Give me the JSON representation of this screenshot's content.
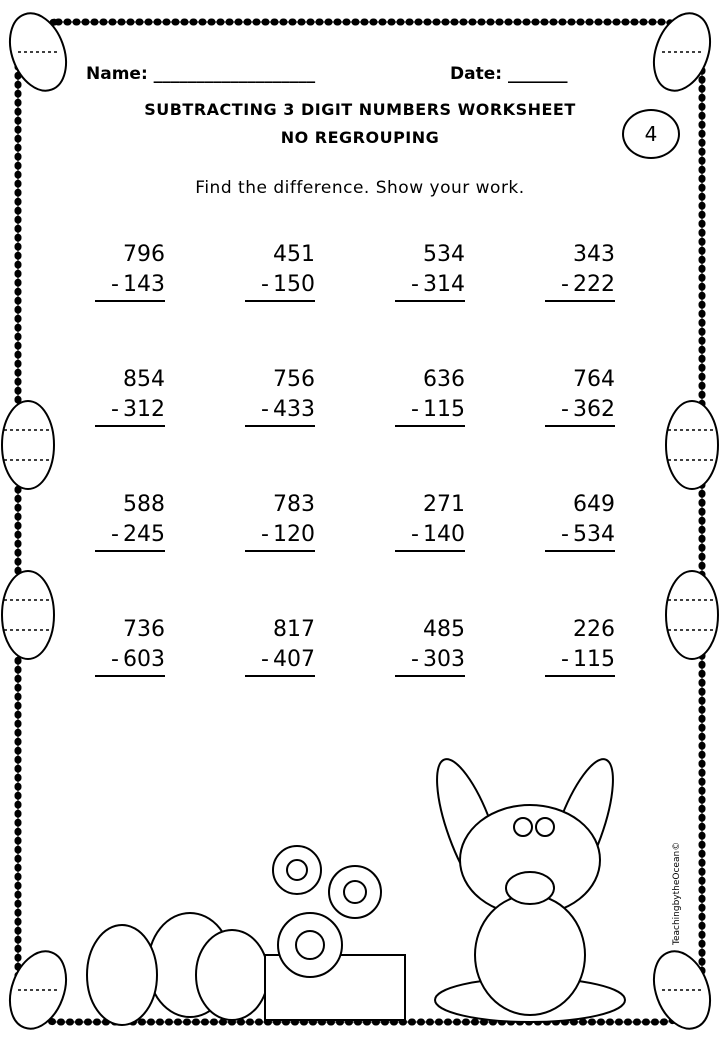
{
  "header": {
    "name_label": "Name: ___________________",
    "date_label": "Date: _______"
  },
  "title": {
    "line1": "SUBTRACTING 3 DIGIT NUMBERS  WORKSHEET",
    "line2": "NO REGROUPING"
  },
  "page_number": "4",
  "instructions": "Find the difference. Show your work.",
  "problems": [
    {
      "top": "796",
      "bottom": "143"
    },
    {
      "top": "451",
      "bottom": "150"
    },
    {
      "top": "534",
      "bottom": "314"
    },
    {
      "top": "343",
      "bottom": "222"
    },
    {
      "top": "854",
      "bottom": "312"
    },
    {
      "top": "756",
      "bottom": "433"
    },
    {
      "top": "636",
      "bottom": "115"
    },
    {
      "top": "764",
      "bottom": "362"
    },
    {
      "top": "588",
      "bottom": "245"
    },
    {
      "top": "783",
      "bottom": "120"
    },
    {
      "top": "271",
      "bottom": "140"
    },
    {
      "top": "649",
      "bottom": "534"
    },
    {
      "top": "736",
      "bottom": "603"
    },
    {
      "top": "817",
      "bottom": "407"
    },
    {
      "top": "485",
      "bottom": "303"
    },
    {
      "top": "226",
      "bottom": "115"
    }
  ],
  "operator": "-",
  "watermark": "TeachingbytheOcean©"
}
